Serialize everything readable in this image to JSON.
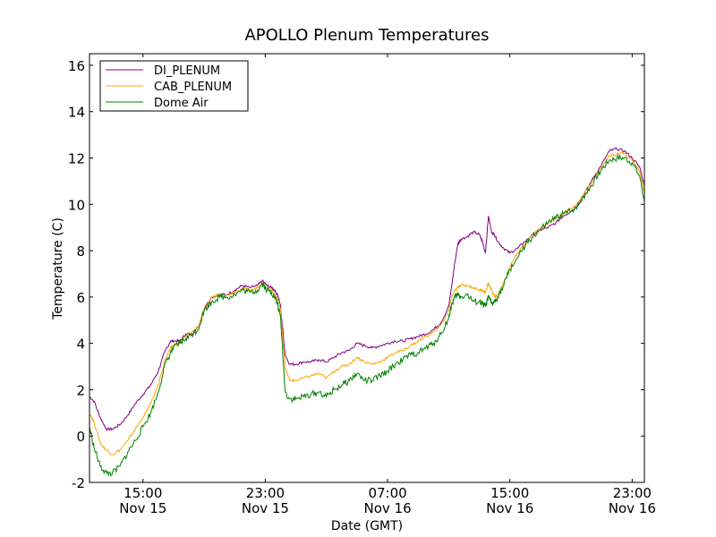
{
  "chart_data": {
    "type": "line",
    "title": "APOLLO Plenum Temperatures",
    "xlabel": "Date (GMT)",
    "ylabel": "Temperature (C)",
    "xlim": [
      11.5,
      47.8
    ],
    "ylim": [
      -2,
      16.5
    ],
    "x_unit": "hours since Nov 15 00:00 GMT",
    "yticks": [
      -2,
      0,
      2,
      4,
      6,
      8,
      10,
      12,
      14,
      16
    ],
    "xticks": [
      {
        "x": 15,
        "time": "15:00",
        "date": "Nov 15"
      },
      {
        "x": 23,
        "time": "23:00",
        "date": "Nov 15"
      },
      {
        "x": 31,
        "time": "07:00",
        "date": "Nov 16"
      },
      {
        "x": 39,
        "time": "15:00",
        "date": "Nov 16"
      },
      {
        "x": 47,
        "time": "23:00",
        "date": "Nov 16"
      }
    ],
    "legend_position": "top-left",
    "series": [
      {
        "name": "DI_PLENUM",
        "color": "#800080",
        "x": [
          11.5,
          11.8,
          12.2,
          12.6,
          13,
          13.5,
          14,
          14.5,
          15,
          15.5,
          16,
          16.4,
          16.8,
          17,
          17.4,
          17.8,
          18.2,
          18.6,
          19,
          19.5,
          20,
          20.5,
          21,
          21.5,
          22,
          22.5,
          22.8,
          23.1,
          23.4,
          23.6,
          23.8,
          24,
          24.3,
          24.6,
          25,
          25.5,
          26,
          26.5,
          27,
          27.5,
          28,
          28.5,
          29,
          29.5,
          30,
          30.5,
          31,
          31.5,
          32,
          32.5,
          33,
          33.5,
          34,
          34.5,
          35,
          35.2,
          35.4,
          35.6,
          35.8,
          36.2,
          36.6,
          37,
          37.2,
          37.4,
          37.6,
          37.8,
          38,
          38.2,
          38.6,
          39,
          39.5,
          40,
          40.5,
          41,
          41.5,
          42,
          42.5,
          43,
          43.5,
          44,
          44.5,
          45,
          45.5,
          46,
          46.5,
          47,
          47.5,
          47.8
        ],
        "y": [
          1.7,
          1.5,
          0.8,
          0.3,
          0.3,
          0.5,
          0.9,
          1.4,
          1.8,
          2.2,
          2.8,
          3.6,
          4.1,
          4.1,
          4.1,
          4.4,
          4.4,
          4.7,
          5.5,
          6.0,
          6.1,
          6.1,
          6.3,
          6.5,
          6.4,
          6.5,
          6.7,
          6.5,
          6.4,
          6.3,
          6.1,
          5.6,
          3.5,
          3.1,
          3.1,
          3.2,
          3.2,
          3.3,
          3.2,
          3.4,
          3.6,
          3.7,
          4.0,
          3.9,
          3.8,
          3.9,
          4.0,
          4.1,
          4.1,
          4.2,
          4.3,
          4.4,
          4.6,
          4.9,
          5.6,
          6.5,
          7.5,
          8.3,
          8.5,
          8.6,
          8.8,
          8.7,
          8.4,
          7.9,
          9.5,
          8.8,
          8.7,
          8.4,
          8.1,
          7.9,
          8.1,
          8.4,
          8.7,
          8.9,
          9.0,
          9.2,
          9.5,
          9.7,
          10.0,
          10.6,
          11.2,
          11.7,
          12.3,
          12.4,
          12.3,
          12.0,
          11.6,
          10.8
        ]
      },
      {
        "name": "CAB_PLENUM",
        "color": "#ffa500",
        "x": [
          11.5,
          11.8,
          12.2,
          12.6,
          13,
          13.5,
          14,
          14.5,
          15,
          15.5,
          16,
          16.4,
          16.8,
          17,
          17.4,
          17.8,
          18.2,
          18.6,
          19,
          19.5,
          20,
          20.5,
          21,
          21.5,
          22,
          22.5,
          22.8,
          23.1,
          23.4,
          23.6,
          23.8,
          24,
          24.3,
          24.6,
          25,
          25.5,
          26,
          26.5,
          27,
          27.5,
          28,
          28.5,
          29,
          29.5,
          30,
          30.5,
          31,
          31.5,
          32,
          32.5,
          33,
          33.5,
          34,
          34.5,
          35,
          35.2,
          35.4,
          35.6,
          35.8,
          36.2,
          36.6,
          37,
          37.2,
          37.4,
          37.6,
          37.8,
          38,
          38.2,
          38.6,
          39,
          39.5,
          40,
          40.5,
          41,
          41.5,
          42,
          42.5,
          43,
          43.5,
          44,
          44.5,
          45,
          45.5,
          46,
          46.5,
          47,
          47.5,
          47.8
        ],
        "y": [
          1.0,
          0.6,
          -0.3,
          -0.6,
          -0.8,
          -0.6,
          -0.2,
          0.3,
          0.8,
          1.4,
          2.2,
          3.2,
          3.8,
          3.9,
          4.0,
          4.3,
          4.5,
          4.7,
          5.5,
          6.0,
          6.1,
          6.1,
          6.2,
          6.4,
          6.3,
          6.4,
          6.6,
          6.4,
          6.3,
          6.1,
          5.9,
          5.5,
          2.9,
          2.4,
          2.4,
          2.5,
          2.6,
          2.7,
          2.5,
          2.8,
          3.0,
          3.1,
          3.4,
          3.2,
          3.1,
          3.2,
          3.4,
          3.6,
          3.7,
          3.9,
          4.1,
          4.3,
          4.5,
          4.8,
          5.4,
          6.0,
          6.3,
          6.4,
          6.5,
          6.5,
          6.4,
          6.3,
          6.3,
          6.2,
          6.6,
          6.3,
          6.0,
          6.1,
          6.6,
          7.3,
          7.9,
          8.3,
          8.7,
          9.0,
          9.2,
          9.4,
          9.6,
          9.8,
          10.1,
          10.6,
          11.1,
          11.6,
          12.1,
          12.2,
          12.2,
          11.9,
          11.4,
          10.5
        ]
      },
      {
        "name": "Dome Air",
        "color": "#008000",
        "x": [
          11.5,
          11.8,
          12.2,
          12.6,
          13,
          13.5,
          14,
          14.5,
          15,
          15.5,
          16,
          16.4,
          16.8,
          17,
          17.4,
          17.8,
          18.2,
          18.6,
          19,
          19.5,
          20,
          20.5,
          21,
          21.5,
          22,
          22.5,
          22.8,
          23.1,
          23.4,
          23.6,
          23.8,
          24,
          24.3,
          24.6,
          25,
          25.5,
          26,
          26.5,
          27,
          27.5,
          28,
          28.5,
          29,
          29.5,
          30,
          30.5,
          31,
          31.5,
          32,
          32.5,
          33,
          33.5,
          34,
          34.5,
          35,
          35.2,
          35.4,
          35.6,
          35.8,
          36.2,
          36.6,
          37,
          37.2,
          37.4,
          37.6,
          37.8,
          38,
          38.2,
          38.6,
          39,
          39.5,
          40,
          40.5,
          41,
          41.5,
          42,
          42.5,
          43,
          43.5,
          44,
          44.5,
          45,
          45.5,
          46,
          46.5,
          47,
          47.5,
          47.8
        ],
        "y": [
          0.4,
          -0.5,
          -1.3,
          -1.6,
          -1.6,
          -1.3,
          -0.7,
          -0.2,
          0.4,
          1.0,
          1.9,
          3.0,
          3.6,
          3.8,
          4.0,
          4.2,
          4.4,
          4.6,
          5.4,
          5.8,
          6.0,
          6.0,
          6.1,
          6.3,
          6.2,
          6.3,
          6.6,
          6.3,
          6.2,
          6.0,
          5.7,
          5.1,
          1.9,
          1.6,
          1.6,
          1.7,
          1.8,
          1.9,
          1.7,
          2.0,
          2.2,
          2.4,
          2.7,
          2.4,
          2.4,
          2.6,
          2.8,
          3.1,
          3.3,
          3.5,
          3.6,
          3.8,
          4.0,
          4.4,
          5.1,
          5.7,
          6.0,
          6.1,
          6.0,
          6.1,
          5.8,
          5.8,
          5.7,
          5.6,
          6.0,
          5.7,
          5.8,
          6.0,
          6.5,
          7.2,
          7.7,
          8.2,
          8.6,
          8.9,
          9.2,
          9.4,
          9.6,
          9.7,
          10.0,
          10.5,
          11.0,
          11.5,
          11.9,
          12.0,
          12.0,
          11.8,
          11.2,
          10.1
        ]
      }
    ]
  }
}
